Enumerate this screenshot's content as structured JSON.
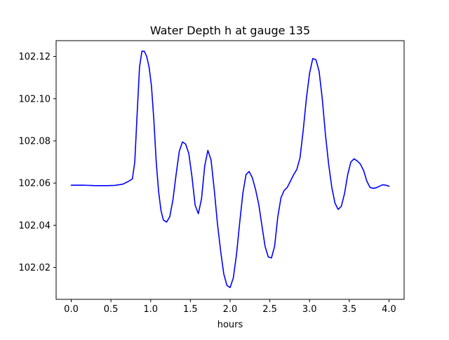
{
  "chart_data": {
    "type": "line",
    "title": "Water Depth h at gauge 135",
    "xlabel": "hours",
    "ylabel": "",
    "xlim": [
      -0.19,
      4.19
    ],
    "ylim": [
      102.0049,
      102.1275
    ],
    "xticks": [
      0.0,
      0.5,
      1.0,
      1.5,
      2.0,
      2.5,
      3.0,
      3.5,
      4.0
    ],
    "xtick_labels": [
      "0.0",
      "0.5",
      "1.0",
      "1.5",
      "2.0",
      "2.5",
      "3.0",
      "3.5",
      "4.0"
    ],
    "yticks": [
      102.02,
      102.04,
      102.06,
      102.08,
      102.1,
      102.12
    ],
    "ytick_labels": [
      "102.02",
      "102.04",
      "102.06",
      "102.08",
      "102.10",
      "102.12"
    ],
    "grid": false,
    "legend": "none",
    "series": [
      {
        "color": "#0000ff",
        "x": [
          0.0,
          0.15,
          0.3,
          0.45,
          0.55,
          0.65,
          0.72,
          0.77,
          0.8,
          0.83,
          0.86,
          0.89,
          0.92,
          0.95,
          0.98,
          1.01,
          1.04,
          1.07,
          1.1,
          1.13,
          1.16,
          1.2,
          1.24,
          1.28,
          1.32,
          1.36,
          1.4,
          1.44,
          1.48,
          1.52,
          1.56,
          1.6,
          1.64,
          1.68,
          1.72,
          1.76,
          1.8,
          1.84,
          1.88,
          1.92,
          1.96,
          2.0,
          2.04,
          2.08,
          2.12,
          2.16,
          2.2,
          2.24,
          2.28,
          2.32,
          2.36,
          2.4,
          2.44,
          2.48,
          2.52,
          2.56,
          2.6,
          2.64,
          2.68,
          2.72,
          2.76,
          2.8,
          2.84,
          2.88,
          2.92,
          2.96,
          3.0,
          3.04,
          3.08,
          3.12,
          3.16,
          3.2,
          3.24,
          3.28,
          3.32,
          3.36,
          3.4,
          3.44,
          3.48,
          3.52,
          3.56,
          3.6,
          3.64,
          3.68,
          3.72,
          3.76,
          3.8,
          3.84,
          3.88,
          3.92,
          3.96,
          4.0
        ],
        "y": [
          102.059,
          102.059,
          102.0588,
          102.0588,
          102.0589,
          102.0595,
          102.0608,
          102.062,
          102.07,
          102.093,
          102.115,
          102.1225,
          102.1225,
          102.12,
          102.115,
          102.106,
          102.09,
          102.07,
          102.056,
          102.047,
          102.0425,
          102.0415,
          102.044,
          102.052,
          102.064,
          102.075,
          102.0795,
          102.0785,
          102.074,
          102.063,
          102.0495,
          102.0455,
          102.0525,
          102.068,
          102.0755,
          102.071,
          102.057,
          102.041,
          102.028,
          102.017,
          102.0115,
          102.0105,
          102.015,
          102.026,
          102.041,
          102.055,
          102.064,
          102.0655,
          102.0625,
          102.057,
          102.05,
          102.04,
          102.03,
          102.025,
          102.0245,
          102.03,
          102.044,
          102.053,
          102.0565,
          102.058,
          102.061,
          102.064,
          102.0665,
          102.072,
          102.085,
          102.1,
          102.112,
          102.119,
          102.1185,
          102.113,
          102.1,
          102.083,
          102.069,
          102.058,
          102.0505,
          102.0475,
          102.049,
          102.055,
          102.064,
          102.07,
          102.0715,
          102.0705,
          102.069,
          102.066,
          102.061,
          102.058,
          102.0575,
          102.0578,
          102.0585,
          102.0592,
          102.059,
          102.0585
        ]
      }
    ]
  }
}
